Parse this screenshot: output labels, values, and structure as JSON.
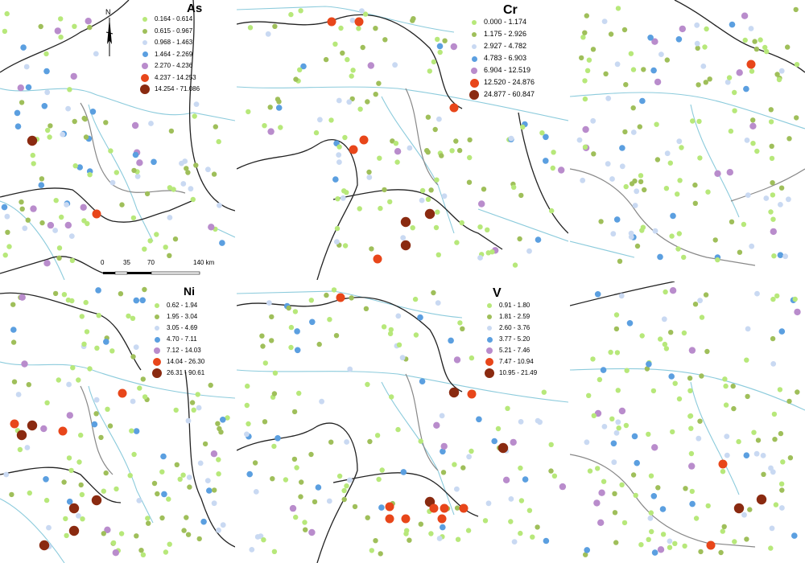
{
  "panels": [
    {
      "id": "as",
      "title": "As",
      "legend": [
        {
          "label": "0.164 - 0.614",
          "color": "#b7e87a"
        },
        {
          "label": "0.615 - 0.967",
          "color": "#9fbf5a"
        },
        {
          "label": "0.968 - 1.463",
          "color": "#c9d9f2"
        },
        {
          "label": "1.464 - 2.269",
          "color": "#5b9fe0"
        },
        {
          "label": "2.270 - 4.236",
          "color": "#b98ccc"
        },
        {
          "label": "4.237 - 14.253",
          "color": "#e8461a"
        },
        {
          "label": "14.254 - 71.086",
          "color": "#8a2a10"
        }
      ]
    },
    {
      "id": "cr",
      "title": "Cr",
      "legend": [
        {
          "label": "0.000 - 1.174",
          "color": "#b7e87a"
        },
        {
          "label": "1.175 - 2.926",
          "color": "#9fbf5a"
        },
        {
          "label": "2.927 - 4.782",
          "color": "#c9d9f2"
        },
        {
          "label": "4.783 - 6.903",
          "color": "#5b9fe0"
        },
        {
          "label": "6.904 - 12.519",
          "color": "#b98ccc"
        },
        {
          "label": "12.520 - 24.876",
          "color": "#e8461a"
        },
        {
          "label": "24.877 - 60.847",
          "color": "#8a2a10"
        }
      ]
    },
    {
      "id": "p3",
      "title": "",
      "legend": []
    },
    {
      "id": "ni",
      "title": "Ni",
      "legend": [
        {
          "label": "0.62 - 1.94",
          "color": "#b7e87a"
        },
        {
          "label": "1.95 - 3.04",
          "color": "#9fbf5a"
        },
        {
          "label": "3.05 - 4.69",
          "color": "#c9d9f2"
        },
        {
          "label": "4.70 - 7.11",
          "color": "#5b9fe0"
        },
        {
          "label": "7.12 - 14.03",
          "color": "#b98ccc"
        },
        {
          "label": "14.04 - 26.30",
          "color": "#e8461a"
        },
        {
          "label": "26.31 - 90.61",
          "color": "#8a2a10"
        }
      ]
    },
    {
      "id": "v",
      "title": "V",
      "legend": [
        {
          "label": "0.91 - 1.80",
          "color": "#b7e87a"
        },
        {
          "label": "1.81 - 2.59",
          "color": "#9fbf5a"
        },
        {
          "label": "2.60 - 3.76",
          "color": "#c9d9f2"
        },
        {
          "label": "3.77 - 5.20",
          "color": "#5b9fe0"
        },
        {
          "label": "5.21 - 7.46",
          "color": "#b98ccc"
        },
        {
          "label": "7.47 - 10.94",
          "color": "#e8461a"
        },
        {
          "label": "10.95 - 21.49",
          "color": "#8a2a10"
        }
      ]
    },
    {
      "id": "p6",
      "title": "",
      "legend": []
    }
  ],
  "scale": {
    "ticks": [
      "0",
      "35",
      "70",
      "140 km"
    ]
  },
  "north_label": "N",
  "icons": {
    "north_arrow": "north-arrow-icon"
  }
}
